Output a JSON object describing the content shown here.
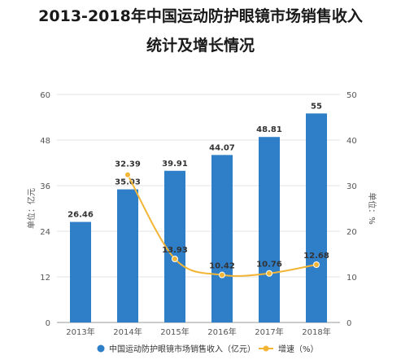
{
  "chart_data": {
    "type": "bar",
    "title_lines": [
      "2013-2018年中国运动防护眼镜市场销售收入",
      "统计及增长情况"
    ],
    "categories": [
      "2013年",
      "2014年",
      "2015年",
      "2016年",
      "2017年",
      "2018年"
    ],
    "series": [
      {
        "name": "中国运动防护眼镜市场销售收入（亿元）",
        "type": "bar",
        "axis": "left",
        "values": [
          26.46,
          35.03,
          39.91,
          44.07,
          48.81,
          55
        ],
        "labels": [
          "26.46",
          "35.03",
          "39.91",
          "44.07",
          "48.81",
          "55"
        ]
      },
      {
        "name": "增速（%）",
        "type": "line",
        "axis": "right",
        "x": [
          "2014年",
          "2015年",
          "2016年",
          "2017年",
          "2018年"
        ],
        "values": [
          32.39,
          13.93,
          10.42,
          10.76,
          12.68
        ],
        "labels": [
          "32.39",
          "13.93",
          "10.42",
          "10.76",
          "12.68"
        ]
      }
    ],
    "ylabel_left": "单位：亿元",
    "ylabel_right": "单位：%",
    "ylim_left": [
      0,
      60
    ],
    "yticks_left": [
      "0",
      "12",
      "24",
      "36",
      "48",
      "60"
    ],
    "ylim_right": [
      0,
      50
    ],
    "yticks_right": [
      "0",
      "10",
      "20",
      "30",
      "40",
      "50"
    ],
    "grid": true,
    "legend_position": "bottom",
    "colors": {
      "bar": "#2f7ec8",
      "line": "#f2b535",
      "axis_text": "#555555",
      "grid": "#e3e3e3"
    }
  }
}
